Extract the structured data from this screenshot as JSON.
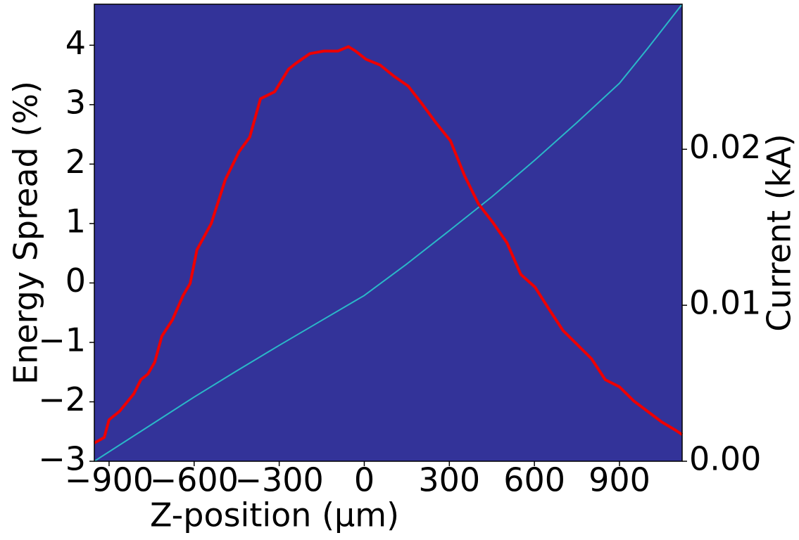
{
  "chart_data": {
    "type": "line",
    "xlabel": "Z-position (µm)",
    "ylabel": "Energy Spread (%)",
    "y2label": "Current (kA)",
    "background": "#333399",
    "xlim": [
      -952,
      1121
    ],
    "ylim": [
      -3.0,
      4.69
    ],
    "y2lim": [
      0,
      0.0293
    ],
    "xticks": [
      {
        "value": -900,
        "label": "−900"
      },
      {
        "value": -600,
        "label": "−600"
      },
      {
        "value": -300,
        "label": "−300"
      },
      0,
      300,
      600,
      900
    ],
    "yticks": [
      {
        "value": -3,
        "label": "−3"
      },
      {
        "value": -2,
        "label": "−2"
      },
      {
        "value": -1,
        "label": "−1"
      },
      0,
      1,
      2,
      3,
      4
    ],
    "y2ticks": [
      {
        "value": 0,
        "label": "0.00"
      },
      {
        "value": 0.01,
        "label": "0.01"
      },
      {
        "value": 0.02,
        "label": "0.02"
      }
    ],
    "series": [
      {
        "color": "#2ab8c8",
        "width": 2,
        "x": [
          -952,
          -750,
          -600,
          -450,
          -300,
          -150,
          0,
          150,
          300,
          450,
          600,
          750,
          900,
          1000,
          1121
        ],
        "values": [
          -3.0,
          -2.38,
          -1.92,
          -1.48,
          -1.05,
          -0.63,
          -0.21,
          0.32,
          0.88,
          1.45,
          2.06,
          2.7,
          3.36,
          3.95,
          4.69
        ]
      },
      {
        "color": "#ee0000",
        "width": 4,
        "axis": "y2",
        "x": [
          -952,
          -917,
          -900,
          -863,
          -813,
          -788,
          -763,
          -739,
          -714,
          -677,
          -639,
          -614,
          -590,
          -540,
          -490,
          -441,
          -404,
          -366,
          -316,
          -267,
          -242,
          -192,
          -143,
          -93,
          -56,
          -31,
          6,
          56,
          105,
          155,
          205,
          254,
          304,
          354,
          403,
          453,
          503,
          552,
          602,
          652,
          701,
          751,
          801,
          850,
          900,
          950,
          999,
          1049,
          1099,
          1121
        ],
        "values": [
          0.00117,
          0.00153,
          0.00266,
          0.0032,
          0.00432,
          0.00523,
          0.00559,
          0.00635,
          0.00802,
          0.00905,
          0.01063,
          0.0114,
          0.01356,
          0.01523,
          0.01806,
          0.01986,
          0.02077,
          0.02324,
          0.02369,
          0.02514,
          0.0255,
          0.02613,
          0.0263,
          0.0263,
          0.02658,
          0.0263,
          0.02577,
          0.0254,
          0.02468,
          0.02405,
          0.02288,
          0.02167,
          0.02054,
          0.01829,
          0.01649,
          0.01532,
          0.01401,
          0.01198,
          0.01117,
          0.00973,
          0.00838,
          0.00748,
          0.00658,
          0.00523,
          0.00477,
          0.00387,
          0.0032,
          0.00252,
          0.00198,
          0.00171
        ]
      }
    ]
  }
}
